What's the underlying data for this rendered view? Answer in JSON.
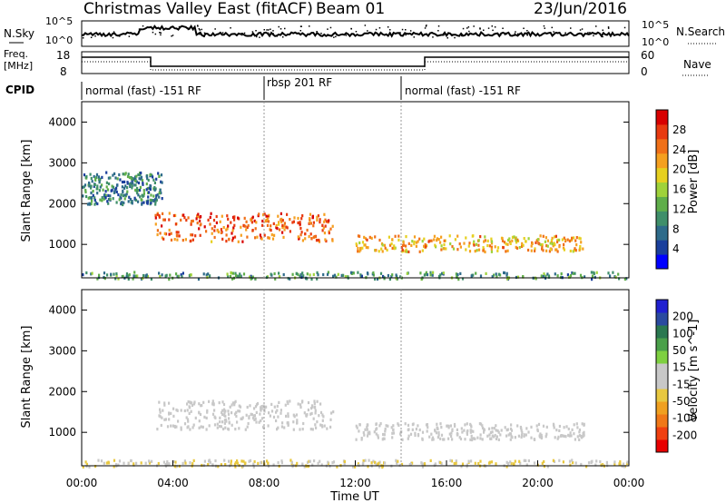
{
  "header": {
    "title": "Christmas Valley East (fitACF)",
    "beam": "Beam 01",
    "date": "23/Jun/2016"
  },
  "top_panels": {
    "nsky_label": "N.Sky",
    "nsearch_label": "N.Search",
    "nsky_ticks_left": [
      "10^5",
      "10^0"
    ],
    "nsky_ticks_right": [
      "10^5",
      "10^0"
    ],
    "freq_label_1": "Freq.",
    "freq_label_2": "[MHz]",
    "freq_ticks": [
      "18",
      "8"
    ],
    "nave_label": "Nave",
    "nave_ticks": [
      "60",
      "0"
    ],
    "cpid_label": "CPID",
    "cpid_segments": [
      {
        "label": "normal (fast) -151 RF",
        "start_hour": 0,
        "end_hour": 8
      },
      {
        "label": "rbsp 201 RF",
        "start_hour": 8,
        "end_hour": 14
      },
      {
        "label": "normal (fast) -151 RF",
        "start_hour": 14,
        "end_hour": 24
      }
    ]
  },
  "colors": {
    "power_scale": [
      "#0000ff",
      "#1a3f9c",
      "#2e6b8a",
      "#3f8f6a",
      "#5fae4a",
      "#9fd23a",
      "#e6d020",
      "#f5a020",
      "#f07018",
      "#e83a10",
      "#d80000"
    ],
    "velocity_scale": [
      "#e80000",
      "#f04010",
      "#f07818",
      "#f0a020",
      "#e8c840",
      "#c8c8c8",
      "#c8c8c8",
      "#7ed040",
      "#4aa04a",
      "#2a7850",
      "#2a4aa0",
      "#2020d0"
    ]
  },
  "chart_data": [
    {
      "type": "heatmap",
      "title": "Power",
      "xlabel": "Time UT",
      "ylabel": "Slant Range [km]",
      "x_ticks": [
        "00:00",
        "04:00",
        "08:00",
        "12:00",
        "16:00",
        "20:00",
        "00:00"
      ],
      "y_ticks": [
        "1000",
        "2000",
        "3000",
        "4000"
      ],
      "xlim_hours": [
        0,
        24
      ],
      "ylim_km": [
        180,
        4500
      ],
      "colorbar_label": "Power [dB]",
      "colorbar_ticks": [
        "4",
        "8",
        "12",
        "16",
        "20",
        "24",
        "28"
      ],
      "colorbar_range": [
        0,
        30
      ],
      "features": [
        {
          "name": "main E/F band",
          "start_hour": 3.2,
          "end_hour": 11.0,
          "range_km": [
            1100,
            1800
          ],
          "power_db": 24
        },
        {
          "name": "afternoon band",
          "start_hour": 12.0,
          "end_hour": 22.0,
          "range_km": [
            850,
            1250
          ],
          "power_db": 20
        },
        {
          "name": "morning diffuse echoes",
          "start_hour": 0.0,
          "end_hour": 3.5,
          "range_km": [
            2000,
            2800
          ],
          "power_db": 8
        },
        {
          "name": "near-range ground scatter",
          "start_hour": 0.0,
          "end_hour": 24.0,
          "range_km": [
            180,
            350
          ],
          "power_db": 10
        }
      ]
    },
    {
      "type": "heatmap",
      "title": "Velocity",
      "xlabel": "Time UT",
      "ylabel": "Slant Range [km]",
      "x_ticks": [
        "00:00",
        "04:00",
        "08:00",
        "12:00",
        "16:00",
        "20:00",
        "00:00"
      ],
      "y_ticks": [
        "1000",
        "2000",
        "3000",
        "4000"
      ],
      "xlim_hours": [
        0,
        24
      ],
      "ylim_km": [
        180,
        4500
      ],
      "colorbar_label": "Velocity [m s^-1]",
      "colorbar_ticks": [
        "200",
        "100",
        "50",
        "15",
        "-15",
        "-50",
        "-100",
        "-200"
      ],
      "colorbar_range": [
        -250,
        250
      ],
      "features": [
        {
          "name": "main band",
          "start_hour": 3.2,
          "end_hour": 11.0,
          "range_km": [
            1100,
            1800
          ],
          "velocity_ms": 0
        },
        {
          "name": "afternoon band",
          "start_hour": 12.0,
          "end_hour": 22.0,
          "range_km": [
            850,
            1250
          ],
          "velocity_ms": 0
        },
        {
          "name": "near-range scatter",
          "start_hour": 0.0,
          "end_hour": 24.0,
          "range_km": [
            180,
            350
          ],
          "velocity_ms": -40
        }
      ]
    }
  ]
}
